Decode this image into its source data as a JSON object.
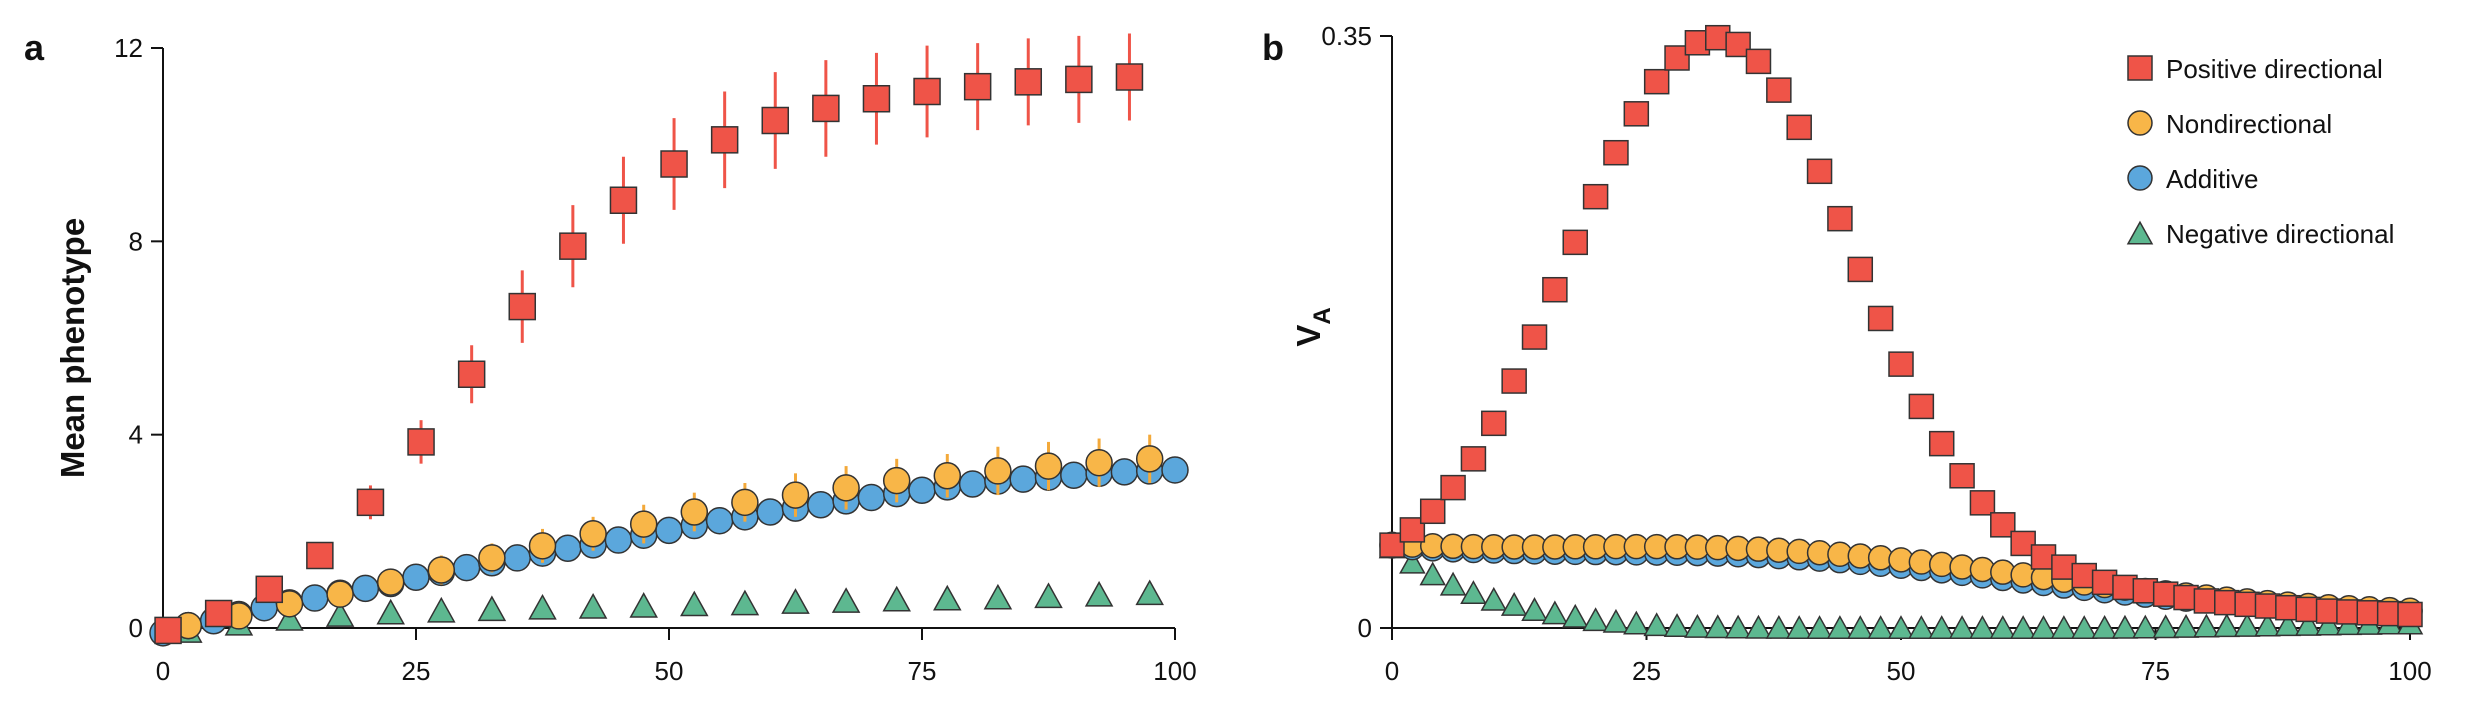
{
  "colors": {
    "positive": "#ef5448",
    "nondirectional": "#f8b648",
    "additive": "#5ba7dc",
    "negative": "#5db890",
    "marker_stroke": "#333333",
    "errorbar_positive": "#ef5448",
    "errorbar_nondirectional": "#f3a93a"
  },
  "marker_shapes": {
    "positive": "square",
    "nondirectional": "circle",
    "additive": "circle",
    "negative": "triangle"
  },
  "chart_data": [
    {
      "panel": "a",
      "type": "scatter",
      "title": "",
      "xlabel": "",
      "ylabel": "Mean phenotype",
      "xlim": [
        0,
        100
      ],
      "ylim": [
        0,
        12
      ],
      "xticks": [
        0,
        25,
        50,
        75,
        100
      ],
      "xtick_labels": [
        "0",
        "25",
        "50",
        "75",
        "100"
      ],
      "yticks": [
        0,
        4,
        8,
        12
      ],
      "ytick_labels": [
        "0",
        "4",
        "8",
        "12"
      ],
      "grid": false,
      "series": [
        {
          "key": "negative",
          "name": "Negative directional",
          "x": [
            2.5,
            7.5,
            12.5,
            17.5,
            22.5,
            27.5,
            32.5,
            37.5,
            42.5,
            47.5,
            52.5,
            57.5,
            62.5,
            67.5,
            72.5,
            77.5,
            82.5,
            87.5,
            92.5,
            97.5
          ],
          "y": [
            -0.05,
            0.1,
            0.2,
            0.28,
            0.33,
            0.37,
            0.4,
            0.43,
            0.45,
            0.47,
            0.5,
            0.52,
            0.55,
            0.57,
            0.6,
            0.62,
            0.64,
            0.67,
            0.7,
            0.73
          ]
        },
        {
          "key": "additive",
          "name": "Additive",
          "x": [
            0,
            2.5,
            5,
            7.5,
            10,
            12.5,
            15,
            17.5,
            20,
            22.5,
            25,
            27.5,
            30,
            32.5,
            35,
            37.5,
            40,
            42.5,
            45,
            47.5,
            50,
            52.5,
            55,
            57.5,
            60,
            62.5,
            65,
            67.5,
            70,
            72.5,
            75,
            77.5,
            80,
            82.5,
            85,
            87.5,
            90,
            92.5,
            95,
            97.5,
            100
          ],
          "y": [
            -0.1,
            0.05,
            0.15,
            0.28,
            0.42,
            0.52,
            0.62,
            0.72,
            0.82,
            0.92,
            1.05,
            1.15,
            1.25,
            1.35,
            1.45,
            1.55,
            1.65,
            1.72,
            1.82,
            1.92,
            2.02,
            2.12,
            2.22,
            2.3,
            2.4,
            2.48,
            2.55,
            2.63,
            2.7,
            2.78,
            2.85,
            2.92,
            2.98,
            3.04,
            3.08,
            3.12,
            3.16,
            3.2,
            3.23,
            3.25,
            3.27
          ]
        },
        {
          "key": "nondirectional",
          "name": "Nondirectional",
          "x": [
            2.5,
            7.5,
            12.5,
            17.5,
            22.5,
            27.5,
            32.5,
            37.5,
            42.5,
            47.5,
            52.5,
            57.5,
            62.5,
            67.5,
            72.5,
            77.5,
            82.5,
            87.5,
            92.5,
            97.5
          ],
          "y": [
            0.05,
            0.25,
            0.5,
            0.7,
            0.95,
            1.2,
            1.45,
            1.7,
            1.95,
            2.15,
            2.4,
            2.6,
            2.75,
            2.9,
            3.05,
            3.15,
            3.25,
            3.35,
            3.42,
            3.5
          ],
          "err": [
            0.05,
            0.1,
            0.15,
            0.2,
            0.25,
            0.3,
            0.3,
            0.35,
            0.35,
            0.4,
            0.4,
            0.4,
            0.45,
            0.45,
            0.45,
            0.45,
            0.5,
            0.5,
            0.5,
            0.5
          ]
        },
        {
          "key": "positive",
          "name": "Positive directional",
          "x": [
            0.5,
            5.5,
            10.5,
            15.5,
            20.5,
            25.5,
            30.5,
            35.5,
            40.5,
            45.5,
            50.5,
            55.5,
            60.5,
            65.5,
            70.5,
            75.5,
            80.5,
            85.5,
            90.5,
            95.5
          ],
          "y": [
            -0.05,
            0.3,
            0.8,
            1.5,
            2.6,
            3.85,
            5.25,
            6.65,
            7.9,
            8.85,
            9.6,
            10.1,
            10.5,
            10.75,
            10.95,
            11.1,
            11.2,
            11.3,
            11.35,
            11.4
          ],
          "err": [
            0.05,
            0.1,
            0.2,
            0.25,
            0.35,
            0.45,
            0.6,
            0.75,
            0.85,
            0.9,
            0.95,
            1.0,
            1.0,
            1.0,
            0.95,
            0.95,
            0.9,
            0.9,
            0.9,
            0.9
          ]
        }
      ]
    },
    {
      "panel": "b",
      "type": "scatter",
      "title": "",
      "xlabel": "",
      "ylabel": "V",
      "ylabel_subscript": "A",
      "xlim": [
        0,
        100
      ],
      "ylim": [
        0,
        0.35
      ],
      "xticks": [
        0,
        25,
        50,
        75,
        100
      ],
      "xtick_labels": [
        "0",
        "25",
        "50",
        "75",
        "100"
      ],
      "yticks": [
        0,
        0.35
      ],
      "ytick_labels": [
        "0",
        "0.35"
      ],
      "grid": false,
      "legend_position": "top-right",
      "legend": [
        {
          "key": "positive",
          "label": "Positive directional"
        },
        {
          "key": "nondirectional",
          "label": "Nondirectional"
        },
        {
          "key": "additive",
          "label": "Additive"
        },
        {
          "key": "negative",
          "label": "Negative directional"
        }
      ],
      "series": [
        {
          "key": "negative",
          "name": "Negative directional",
          "x": [
            0,
            2,
            4,
            6,
            8,
            10,
            12,
            14,
            16,
            18,
            20,
            22,
            24,
            26,
            28,
            30,
            32,
            34,
            36,
            38,
            40,
            42,
            44,
            46,
            48,
            50,
            52,
            54,
            56,
            58,
            60,
            62,
            64,
            66,
            68,
            70,
            72,
            74,
            76,
            78,
            80,
            82,
            84,
            86,
            88,
            90,
            92,
            94,
            96,
            98,
            100
          ],
          "y": [
            0.048,
            0.039,
            0.032,
            0.026,
            0.021,
            0.017,
            0.014,
            0.011,
            0.009,
            0.007,
            0.005,
            0.004,
            0.003,
            0.002,
            0.0015,
            0.001,
            0.0008,
            0.0006,
            0.0005,
            0.0004,
            0.0003,
            0.0003,
            0.0003,
            0.0003,
            0.0003,
            0.0003,
            0.0003,
            0.0003,
            0.0003,
            0.0003,
            0.0003,
            0.0003,
            0.0003,
            0.0003,
            0.0003,
            0.0004,
            0.0005,
            0.0006,
            0.0008,
            0.001,
            0.0012,
            0.0014,
            0.0016,
            0.0018,
            0.002,
            0.0022,
            0.0024,
            0.0026,
            0.0028,
            0.003,
            0.003
          ]
        },
        {
          "key": "additive",
          "name": "Additive",
          "x": [
            0,
            2,
            4,
            6,
            8,
            10,
            12,
            14,
            16,
            18,
            20,
            22,
            24,
            26,
            28,
            30,
            32,
            34,
            36,
            38,
            40,
            42,
            44,
            46,
            48,
            50,
            52,
            54,
            56,
            58,
            60,
            62,
            64,
            66,
            68,
            70,
            72,
            74,
            76,
            78,
            80,
            82,
            84,
            86,
            88,
            90,
            92,
            94,
            96,
            98,
            100
          ],
          "y": [
            0.0485,
            0.0475,
            0.0468,
            0.0462,
            0.0458,
            0.0455,
            0.0452,
            0.045,
            0.0448,
            0.0447,
            0.0446,
            0.0445,
            0.0444,
            0.0443,
            0.0442,
            0.044,
            0.0437,
            0.0433,
            0.0428,
            0.0422,
            0.0415,
            0.0407,
            0.0398,
            0.0388,
            0.0377,
            0.0365,
            0.0352,
            0.0338,
            0.0323,
            0.0308,
            0.0293,
            0.0278,
            0.0263,
            0.0248,
            0.0234,
            0.022,
            0.0207,
            0.0194,
            0.0182,
            0.0171,
            0.016,
            0.015,
            0.0141,
            0.0133,
            0.0126,
            0.012,
            0.0114,
            0.0109,
            0.0105,
            0.0101,
            0.0098
          ]
        },
        {
          "key": "nondirectional",
          "name": "Nondirectional",
          "x": [
            0,
            2,
            4,
            6,
            8,
            10,
            12,
            14,
            16,
            18,
            20,
            22,
            24,
            26,
            28,
            30,
            32,
            34,
            36,
            38,
            40,
            42,
            44,
            46,
            48,
            50,
            52,
            54,
            56,
            58,
            60,
            62,
            64,
            66,
            68,
            70,
            72,
            74,
            76,
            78,
            80,
            82,
            84,
            86,
            88,
            90,
            92,
            94,
            96,
            98,
            100
          ],
          "y": [
            0.0495,
            0.049,
            0.0486,
            0.0483,
            0.0481,
            0.048,
            0.0479,
            0.0479,
            0.0479,
            0.048,
            0.048,
            0.0481,
            0.0481,
            0.0481,
            0.048,
            0.0478,
            0.0475,
            0.0471,
            0.0466,
            0.046,
            0.0453,
            0.0445,
            0.0436,
            0.0426,
            0.0415,
            0.0403,
            0.039,
            0.0376,
            0.0361,
            0.0346,
            0.033,
            0.0314,
            0.0298,
            0.0282,
            0.0266,
            0.0251,
            0.0236,
            0.0222,
            0.0208,
            0.0195,
            0.0183,
            0.0171,
            0.016,
            0.015,
            0.0141,
            0.0133,
            0.0126,
            0.012,
            0.0114,
            0.0109,
            0.0105
          ]
        },
        {
          "key": "positive",
          "name": "Positive directional",
          "x": [
            0,
            2,
            4,
            6,
            8,
            10,
            12,
            14,
            16,
            18,
            20,
            22,
            24,
            26,
            28,
            30,
            32,
            34,
            36,
            38,
            40,
            42,
            44,
            46,
            48,
            50,
            52,
            54,
            56,
            58,
            60,
            62,
            64,
            66,
            68,
            70,
            72,
            74,
            76,
            78,
            80,
            82,
            84,
            86,
            88,
            90,
            92,
            94,
            96,
            98,
            100
          ],
          "y": [
            0.049,
            0.058,
            0.069,
            0.083,
            0.1,
            0.121,
            0.146,
            0.172,
            0.2,
            0.228,
            0.255,
            0.281,
            0.304,
            0.323,
            0.337,
            0.346,
            0.349,
            0.345,
            0.335,
            0.318,
            0.296,
            0.27,
            0.242,
            0.212,
            0.183,
            0.156,
            0.131,
            0.109,
            0.09,
            0.074,
            0.061,
            0.05,
            0.042,
            0.036,
            0.031,
            0.027,
            0.024,
            0.022,
            0.02,
            0.018,
            0.016,
            0.015,
            0.014,
            0.013,
            0.012,
            0.011,
            0.01,
            0.0095,
            0.009,
            0.0085,
            0.008
          ]
        }
      ]
    }
  ]
}
